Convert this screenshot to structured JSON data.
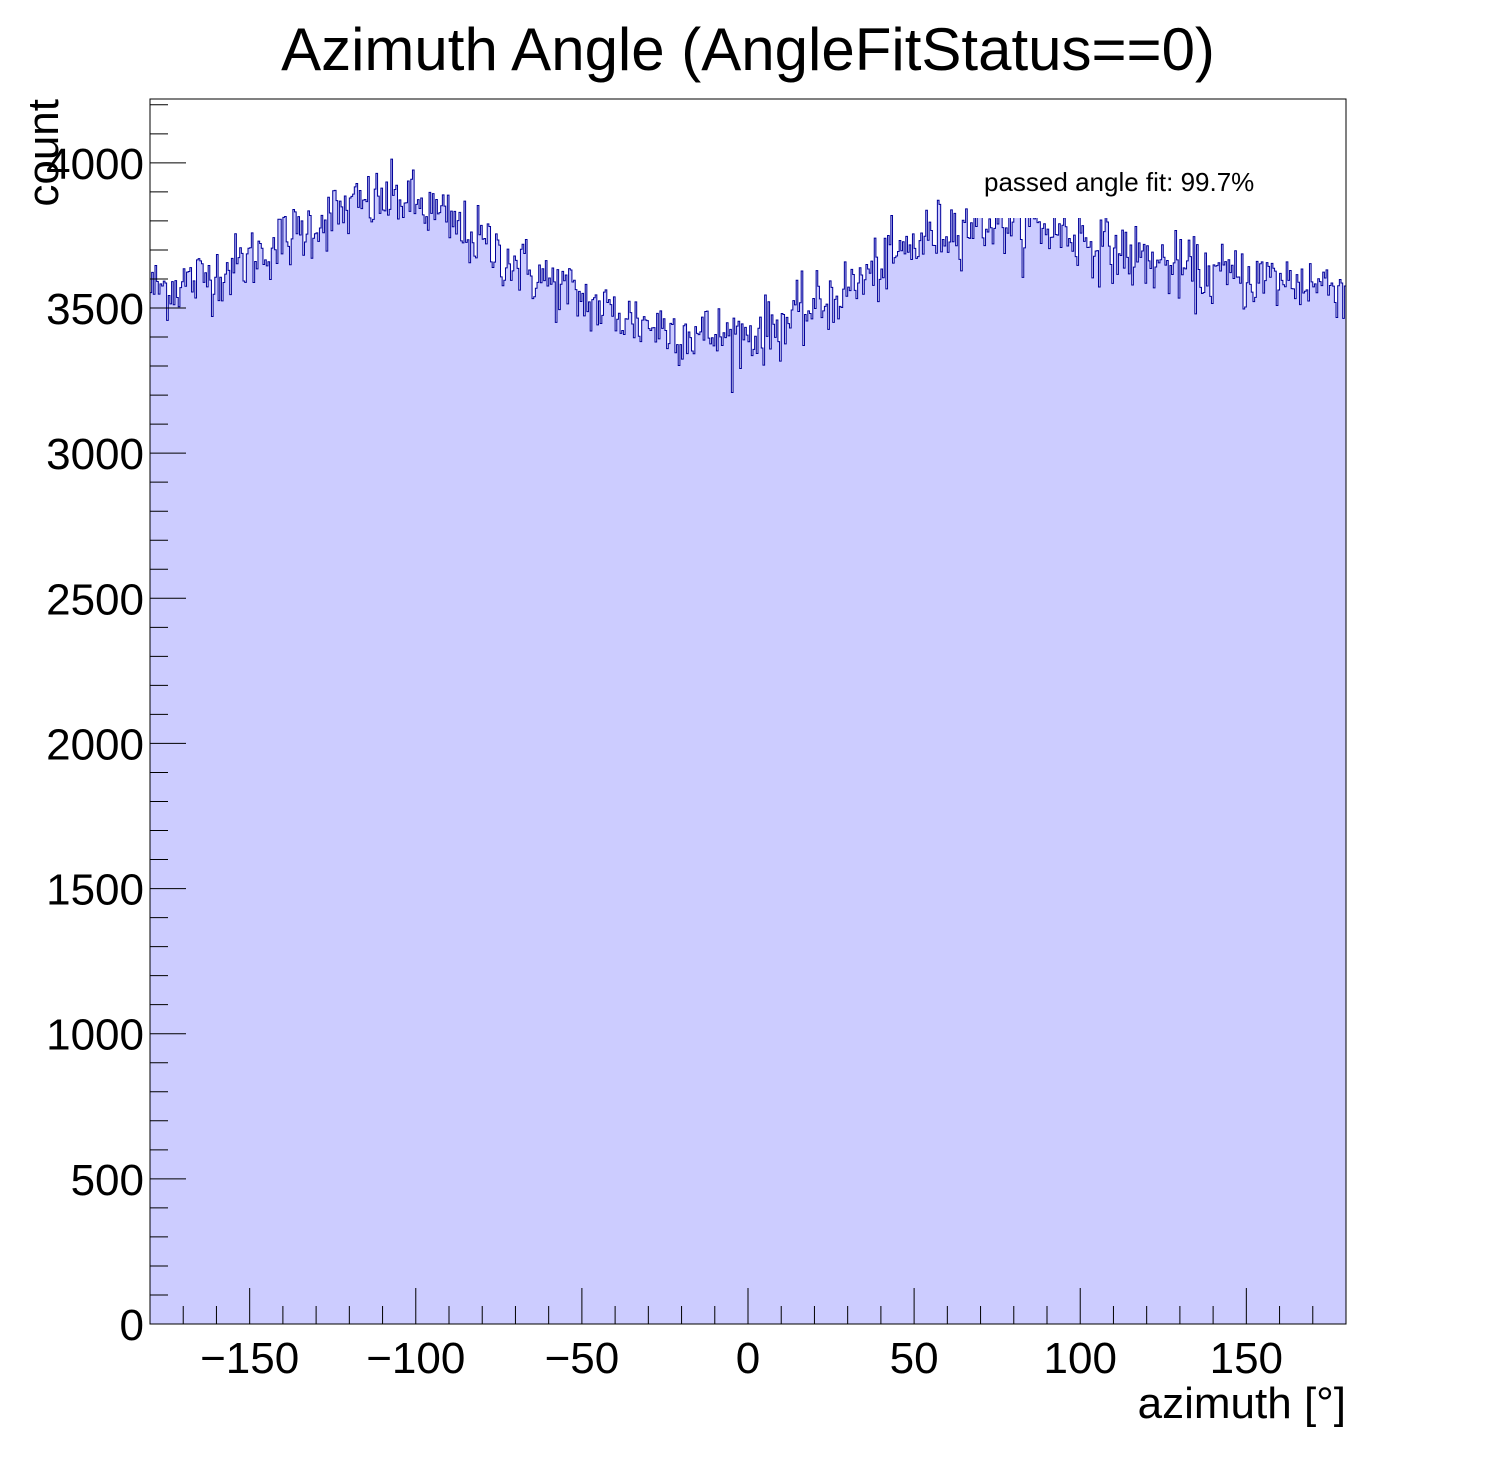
{
  "chart_data": {
    "type": "bar",
    "title": "Azimuth Angle (AngleFitStatus==0)",
    "xlabel": "azimuth [°]",
    "ylabel": "count",
    "xlim": [
      -180,
      180
    ],
    "ylim": [
      0,
      4220
    ],
    "grid": false,
    "x_ticks": [
      -150,
      -100,
      -50,
      0,
      50,
      100,
      150
    ],
    "x_tick_labels": [
      "−150",
      "−100",
      "−50",
      "0",
      "50",
      "100",
      "150"
    ],
    "y_ticks": [
      0,
      500,
      1000,
      1500,
      2000,
      2500,
      3000,
      3500,
      4000
    ],
    "y_tick_labels": [
      "0",
      "500",
      "1000",
      "1500",
      "2000",
      "2500",
      "3000",
      "3500",
      "4000"
    ],
    "annotation": "passed angle fit: 99.7%",
    "legend_position": "top-right",
    "bin_width": 1,
    "series": [
      {
        "fill_color": "#ccccff",
        "line_color": "#000099",
        "x": [
          -175,
          -165,
          -155,
          -145,
          -135,
          -125,
          -115,
          -105,
          -95,
          -85,
          -75,
          -65,
          -55,
          -45,
          -35,
          -25,
          -15,
          -5,
          5,
          15,
          25,
          35,
          45,
          55,
          65,
          75,
          85,
          95,
          105,
          115,
          125,
          135,
          145,
          155,
          165,
          175
        ],
        "values": [
          3570,
          3600,
          3640,
          3700,
          3760,
          3820,
          3860,
          3880,
          3830,
          3760,
          3690,
          3620,
          3560,
          3500,
          3460,
          3430,
          3410,
          3400,
          3420,
          3470,
          3530,
          3600,
          3680,
          3750,
          3790,
          3800,
          3790,
          3760,
          3720,
          3680,
          3650,
          3620,
          3610,
          3600,
          3590,
          3580
        ]
      }
    ]
  }
}
